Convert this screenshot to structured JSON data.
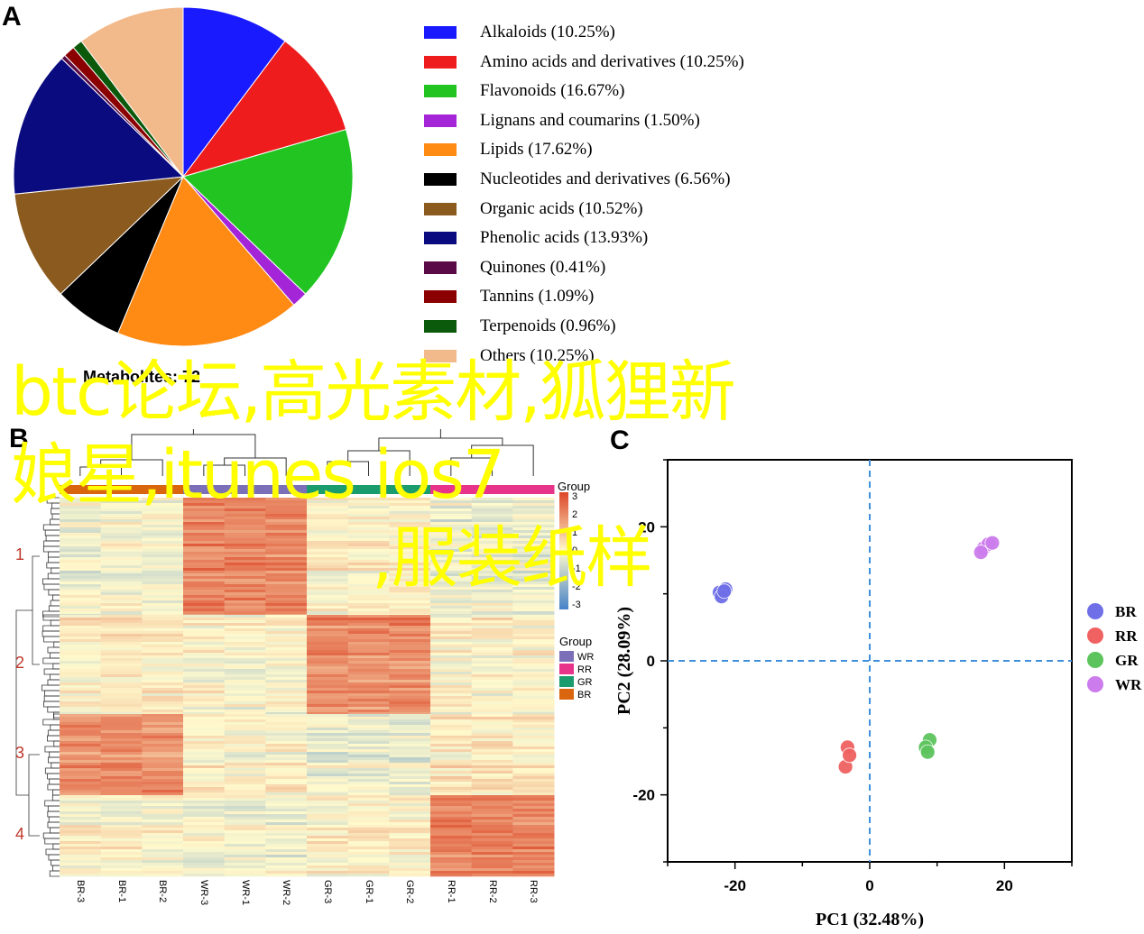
{
  "panels": {
    "a": "A",
    "b": "B",
    "c": "C"
  },
  "chart_data": [
    {
      "type": "pie",
      "panel": "A",
      "title": "Metabolites: 72",
      "categories": [
        "Alkaloids",
        "Amino acids and derivatives",
        "Flavonoids",
        "Lignans and coumarins",
        "Lipids",
        "Nucleotides and derivatives",
        "Organic acids",
        "Phenolic acids",
        "Quinones",
        "Tannins",
        "Terpenoids",
        "Others"
      ],
      "legend_labels": [
        "Alkaloids (10.25%)",
        "Amino acids and derivatives (10.25%)",
        "Flavonoids (16.67%)",
        "Lignans and coumarins (1.50%)",
        "Lipids (17.62%)",
        "Nucleotides and derivatives (6.56%)",
        "Organic acids (10.52%)",
        "Phenolic acids (13.93%)",
        "Quinones (0.41%)",
        "Tannins (1.09%)",
        "Terpenoids (0.96%)",
        "Others (10.25%)"
      ],
      "values": [
        10.25,
        10.25,
        16.67,
        1.5,
        17.62,
        6.56,
        10.52,
        13.93,
        0.41,
        1.09,
        0.96,
        10.25
      ],
      "colors": [
        "#1a1aff",
        "#ee1c1c",
        "#22c422",
        "#a424d8",
        "#ff8a14",
        "#000000",
        "#8b5a1e",
        "#0b0b80",
        "#5a0a46",
        "#8b0000",
        "#0b5a0b",
        "#f2b98a"
      ],
      "legend_position": "right"
    },
    {
      "type": "heatmap",
      "panel": "B",
      "columns": [
        "BR-3",
        "BR-1",
        "BR-2",
        "WR-3",
        "WR-1",
        "WR-2",
        "GR-3",
        "GR-1",
        "GR-2",
        "RR-1",
        "RR-2",
        "RR-3"
      ],
      "clusters": [
        "1",
        "2",
        "3",
        "4"
      ],
      "color_scale": {
        "title": "Group",
        "ticks": [
          "3",
          "2",
          "1",
          "0",
          "-1",
          "-2",
          "-3"
        ]
      },
      "group_legend": {
        "title": "Group",
        "items": [
          {
            "name": "WR",
            "color": "#7b6fb8"
          },
          {
            "name": "RR",
            "color": "#e8338a"
          },
          {
            "name": "GR",
            "color": "#1a9c6e"
          },
          {
            "name": "BR",
            "color": "#d9650f"
          }
        ]
      },
      "cluster_levels": [
        {
          "BR": -0.2,
          "WR": 1.9,
          "GR": 0.1,
          "RR": -0.3
        },
        {
          "BR": 0.2,
          "WR": 0.0,
          "GR": 1.8,
          "RR": 0.1
        },
        {
          "BR": 1.8,
          "WR": 0.1,
          "GR": -0.3,
          "RR": 0.3
        },
        {
          "BR": 0.0,
          "WR": -0.2,
          "GR": 0.1,
          "RR": 2.0
        }
      ]
    },
    {
      "type": "scatter",
      "panel": "C",
      "xlabel": "PC1 (32.48%)",
      "ylabel": "PC2 (28.09%)",
      "xlim": [
        -30,
        30
      ],
      "ylim": [
        -30,
        30
      ],
      "xticks": [
        "-20",
        "0",
        "20"
      ],
      "yticks": [
        "-20",
        "0",
        "20"
      ],
      "series": [
        {
          "name": "BR",
          "color": "#6f6fe8",
          "points": [
            [
              -22.3,
              10.2
            ],
            [
              -21.4,
              10.7
            ],
            [
              -22.0,
              9.6
            ],
            [
              -21.6,
              10.4
            ]
          ]
        },
        {
          "name": "RR",
          "color": "#f06262",
          "points": [
            [
              -3.3,
              -12.9
            ],
            [
              -3.6,
              -15.8
            ],
            [
              -3.0,
              -14.1
            ]
          ]
        },
        {
          "name": "GR",
          "color": "#5cc45c",
          "points": [
            [
              8.9,
              -11.8
            ],
            [
              8.3,
              -12.9
            ],
            [
              8.6,
              -13.6
            ]
          ]
        },
        {
          "name": "WR",
          "color": "#cc7cec",
          "points": [
            [
              16.9,
              16.8
            ],
            [
              17.6,
              17.4
            ],
            [
              18.2,
              17.6
            ],
            [
              16.5,
              16.2
            ]
          ]
        }
      ],
      "legend_position": "right"
    }
  ],
  "overlay": {
    "line1": "btc论坛,高光素材,狐狸新",
    "line2": "娘星,itunes ios7",
    "line3": ",服装纸样"
  }
}
